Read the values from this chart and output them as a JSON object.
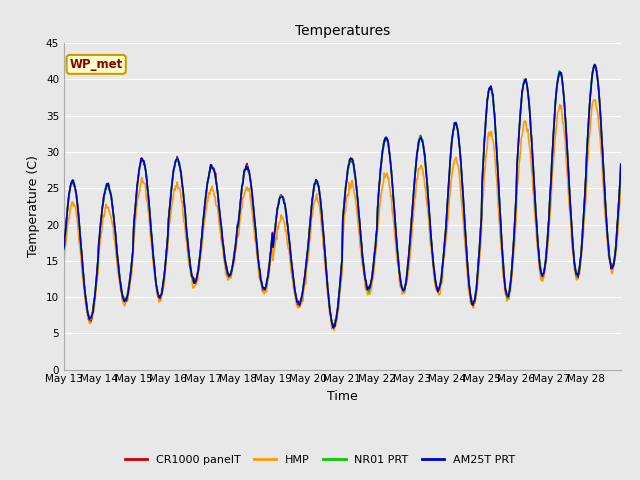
{
  "title": "Temperatures",
  "xlabel": "Time",
  "ylabel": "Temperature (C)",
  "ylim": [
    0,
    45
  ],
  "yticks": [
    0,
    5,
    10,
    15,
    20,
    25,
    30,
    35,
    40,
    45
  ],
  "bg_color": "#e8e8e8",
  "station_label": "WP_met",
  "legend_entries": [
    "CR1000 panelT",
    "HMP",
    "NR01 PRT",
    "AM25T PRT"
  ],
  "line_colors": [
    "#cc0000",
    "#ff9900",
    "#00cc00",
    "#0000cc"
  ],
  "x_tick_labels": [
    "May 13",
    "May 14",
    "May 15",
    "May 16",
    "May 17",
    "May 18",
    "May 19",
    "May 20",
    "May 21",
    "May 22",
    "May 23",
    "May 24",
    "May 25",
    "May 26",
    "May 27",
    "May 28"
  ],
  "num_days": 16,
  "points_per_day": 48,
  "daily_min": [
    7,
    9.5,
    10,
    12,
    13,
    11,
    9,
    6,
    11,
    11,
    11,
    9,
    10,
    13,
    13,
    14
  ],
  "daily_max": [
    26,
    25.5,
    29,
    29,
    28,
    28,
    24,
    26,
    29,
    32,
    32,
    34,
    39,
    40,
    41,
    42
  ]
}
